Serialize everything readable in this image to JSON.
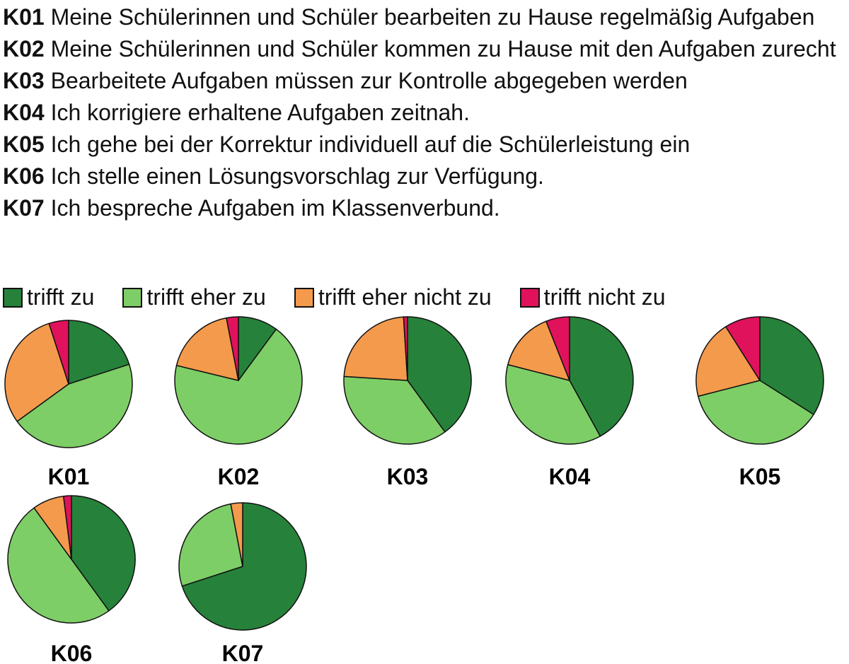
{
  "items": [
    {
      "code": "K01",
      "text": "Meine Schülerinnen und Schüler bearbeiten zu Hause regelmäßig Aufgaben"
    },
    {
      "code": "K02",
      "text": "Meine Schülerinnen und Schüler kommen zu Hause mit den Aufgaben zurecht"
    },
    {
      "code": "K03",
      "text": "Bearbeitete Aufgaben müssen zur Kontrolle abgegeben werden"
    },
    {
      "code": "K04",
      "text": "Ich korrigiere erhaltene Aufgaben zeitnah."
    },
    {
      "code": "K05",
      "text": "Ich gehe bei der Korrektur individuell auf die Schülerleistung ein"
    },
    {
      "code": "K06",
      "text": "Ich stelle einen Lösungsvorschlag zur Verfügung."
    },
    {
      "code": "K07",
      "text": "Ich bespreche Aufgaben im Klassenverbund."
    }
  ],
  "chart_data": {
    "type": "pie",
    "legend_position": "top",
    "categories": [
      "trifft zu",
      "trifft eher zu",
      "trifft eher nicht zu",
      "trifft nicht zu"
    ],
    "colors": [
      "#26823A",
      "#7DCE66",
      "#F49A4C",
      "#E0125C"
    ],
    "series": [
      {
        "name": "K01",
        "values": [
          20,
          45,
          30,
          5
        ]
      },
      {
        "name": "K02",
        "values": [
          10,
          68,
          18,
          3
        ]
      },
      {
        "name": "K03",
        "values": [
          40,
          36,
          23,
          1
        ]
      },
      {
        "name": "K04",
        "values": [
          42,
          37,
          15,
          6
        ]
      },
      {
        "name": "K05",
        "values": [
          34,
          37,
          20,
          9
        ]
      },
      {
        "name": "K06",
        "values": [
          40,
          50,
          8,
          2
        ]
      },
      {
        "name": "K07",
        "values": [
          70,
          27,
          3,
          0
        ]
      }
    ]
  }
}
